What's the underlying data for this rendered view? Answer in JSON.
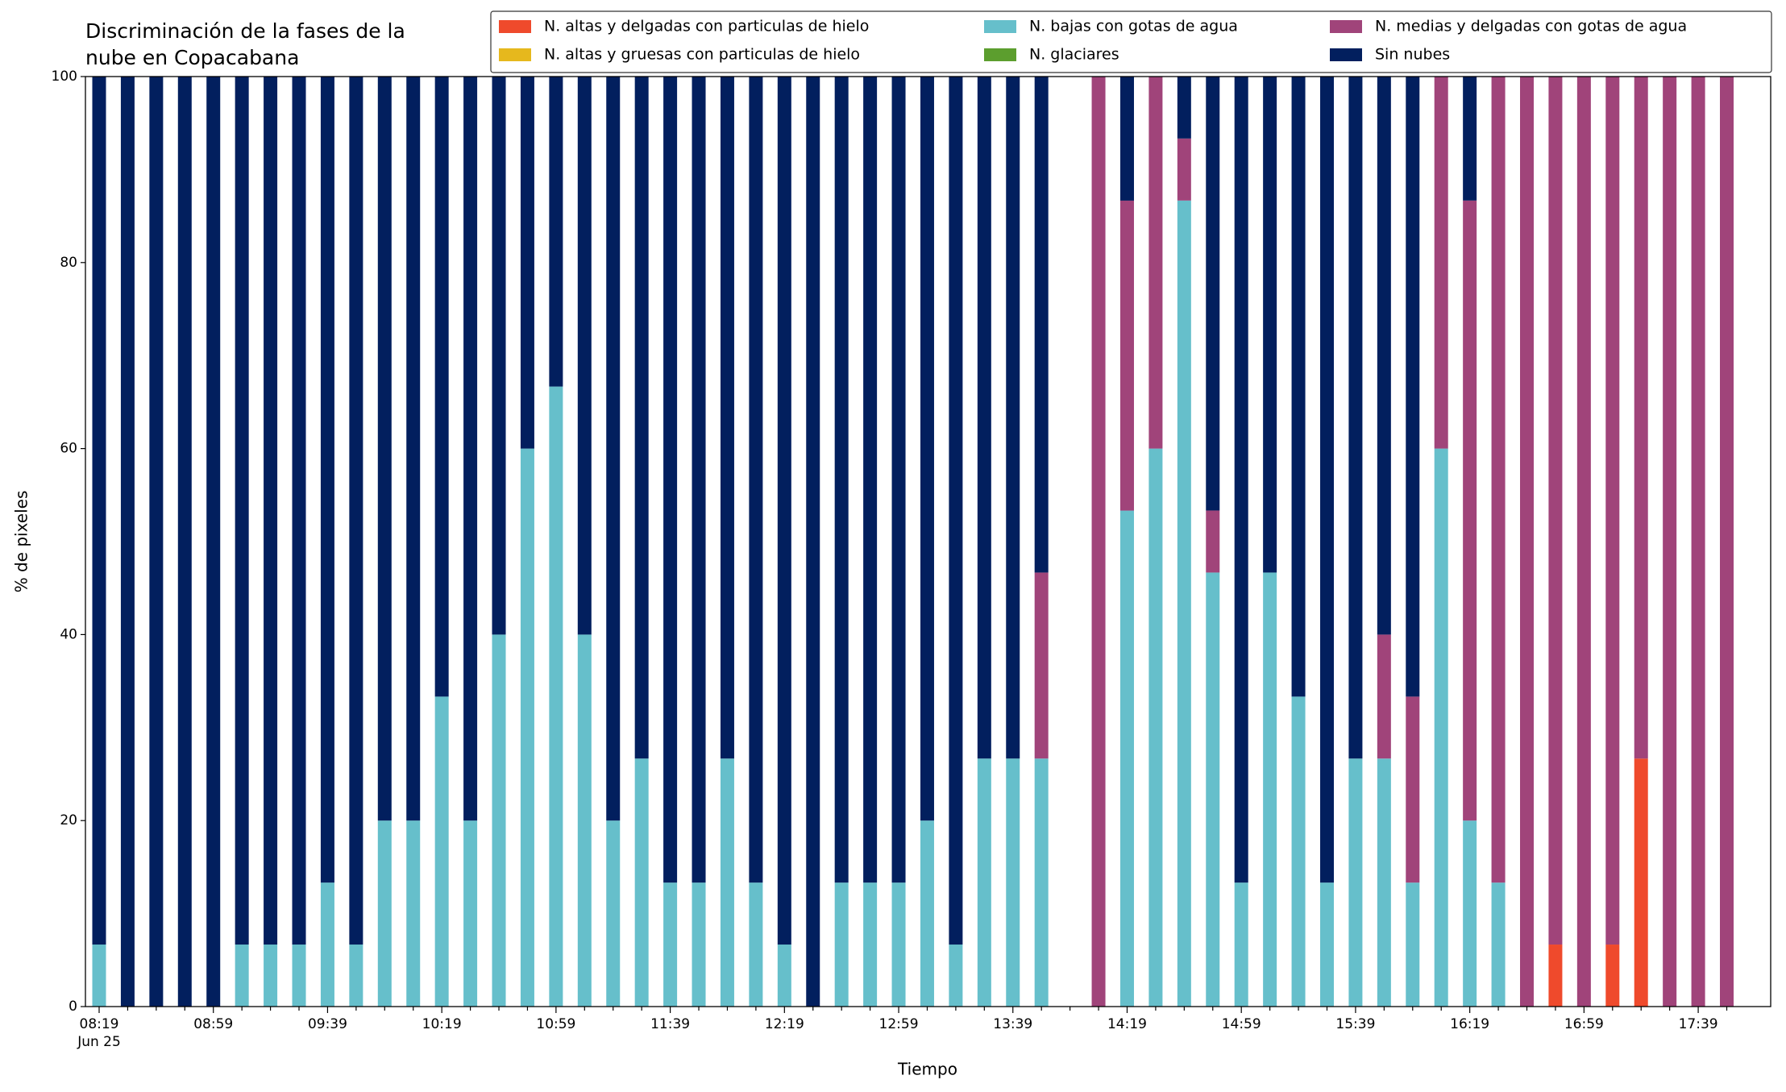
{
  "chart_data": {
    "type": "stacked_bar",
    "title": [
      "Discriminación de la fases de la",
      "nube en Copacabana"
    ],
    "x_label": "Tiempo",
    "y_label": "% de pixeles",
    "date_label": "Jun 25",
    "categories": [
      "08:19",
      null,
      null,
      null,
      "08:59",
      null,
      null,
      null,
      "09:39",
      null,
      null,
      null,
      "10:19",
      null,
      null,
      null,
      "10:59",
      null,
      null,
      null,
      "11:39",
      null,
      null,
      null,
      "12:19",
      null,
      null,
      null,
      "12:59",
      null,
      null,
      null,
      "13:39",
      null,
      null,
      null,
      "14:19",
      null,
      null,
      null,
      "14:59",
      null,
      null,
      null,
      "15:39",
      null,
      null,
      null,
      "16:19",
      null,
      null,
      null,
      "16:59",
      null,
      null,
      null,
      "17:39",
      null
    ],
    "ylim": [
      0,
      100
    ],
    "yticks": [
      0,
      20,
      40,
      60,
      80,
      100
    ],
    "legend": "top-right",
    "series": [
      {
        "name": "N. altas y delgadas con particulas de hielo",
        "color": "#ef4a2c",
        "values": [
          0,
          0,
          0,
          0,
          0,
          0,
          0,
          0,
          0,
          0,
          0,
          0,
          0,
          0,
          0,
          0,
          0,
          0,
          0,
          0,
          0,
          0,
          0,
          0,
          0,
          0,
          0,
          0,
          0,
          0,
          0,
          0,
          0,
          0,
          null,
          0,
          0,
          0,
          0,
          0,
          0,
          0,
          0,
          0,
          0,
          0,
          0,
          0,
          0,
          0,
          0,
          6.67,
          0,
          6.67,
          26.67,
          0,
          0,
          0
        ]
      },
      {
        "name": "N. altas y gruesas con particulas de hielo",
        "color": "#e6b81d",
        "values": [
          0,
          0,
          0,
          0,
          0,
          0,
          0,
          0,
          0,
          0,
          0,
          0,
          0,
          0,
          0,
          0,
          0,
          0,
          0,
          0,
          0,
          0,
          0,
          0,
          0,
          0,
          0,
          0,
          0,
          0,
          0,
          0,
          0,
          0,
          null,
          0,
          0,
          0,
          0,
          0,
          0,
          0,
          0,
          0,
          0,
          0,
          0,
          0,
          0,
          0,
          0,
          0,
          0,
          0,
          0,
          0,
          0,
          0
        ]
      },
      {
        "name": "N. bajas con gotas de agua",
        "color": "#66bfcb",
        "values": [
          6.67,
          0,
          0,
          0,
          0,
          6.67,
          6.67,
          6.67,
          13.33,
          6.67,
          20,
          20,
          33.33,
          20,
          40,
          60,
          66.67,
          40,
          20,
          26.67,
          13.33,
          13.33,
          26.67,
          13.33,
          6.67,
          0,
          13.33,
          13.33,
          13.33,
          20,
          6.67,
          26.67,
          26.67,
          26.67,
          null,
          0,
          53.33,
          60,
          86.67,
          46.67,
          13.33,
          46.67,
          33.33,
          13.33,
          26.67,
          26.67,
          13.33,
          60,
          20,
          13.33,
          0,
          0,
          0,
          0,
          0,
          0,
          0,
          0
        ]
      },
      {
        "name": "N. glaciares",
        "color": "#5c9e2e",
        "values": [
          0,
          0,
          0,
          0,
          0,
          0,
          0,
          0,
          0,
          0,
          0,
          0,
          0,
          0,
          0,
          0,
          0,
          0,
          0,
          0,
          0,
          0,
          0,
          0,
          0,
          0,
          0,
          0,
          0,
          0,
          0,
          0,
          0,
          0,
          null,
          0,
          0,
          0,
          0,
          0,
          0,
          0,
          0,
          0,
          0,
          0,
          0,
          0,
          0,
          0,
          0,
          0,
          0,
          0,
          0,
          0,
          0,
          0
        ]
      },
      {
        "name": "N. medias y delgadas con gotas de agua",
        "color": "#a0447a",
        "values": [
          0,
          0,
          0,
          0,
          0,
          0,
          0,
          0,
          0,
          0,
          0,
          0,
          0,
          0,
          0,
          0,
          0,
          0,
          0,
          0,
          0,
          0,
          0,
          0,
          0,
          0,
          0,
          0,
          0,
          0,
          0,
          0,
          0,
          20,
          null,
          100,
          33.33,
          40,
          6.67,
          6.67,
          0,
          0,
          0,
          0,
          0,
          13.33,
          20,
          40,
          66.67,
          86.67,
          100,
          93.33,
          100,
          93.33,
          73.33,
          100,
          100,
          100
        ]
      },
      {
        "name": "Sin nubes",
        "color": "#021f5e",
        "values": [
          93.33,
          100,
          100,
          100,
          100,
          93.33,
          93.33,
          93.33,
          86.67,
          93.33,
          80,
          80,
          66.67,
          80,
          60,
          40,
          33.33,
          60,
          80,
          73.33,
          86.67,
          86.67,
          73.33,
          86.67,
          93.33,
          100,
          86.67,
          86.67,
          86.67,
          80,
          93.33,
          73.33,
          73.33,
          53.33,
          null,
          0,
          13.33,
          0,
          6.67,
          46.67,
          86.67,
          53.33,
          66.67,
          86.67,
          73.33,
          60,
          66.67,
          0,
          13.33,
          0,
          0,
          0,
          0,
          0,
          0,
          0,
          0,
          0
        ]
      }
    ]
  }
}
